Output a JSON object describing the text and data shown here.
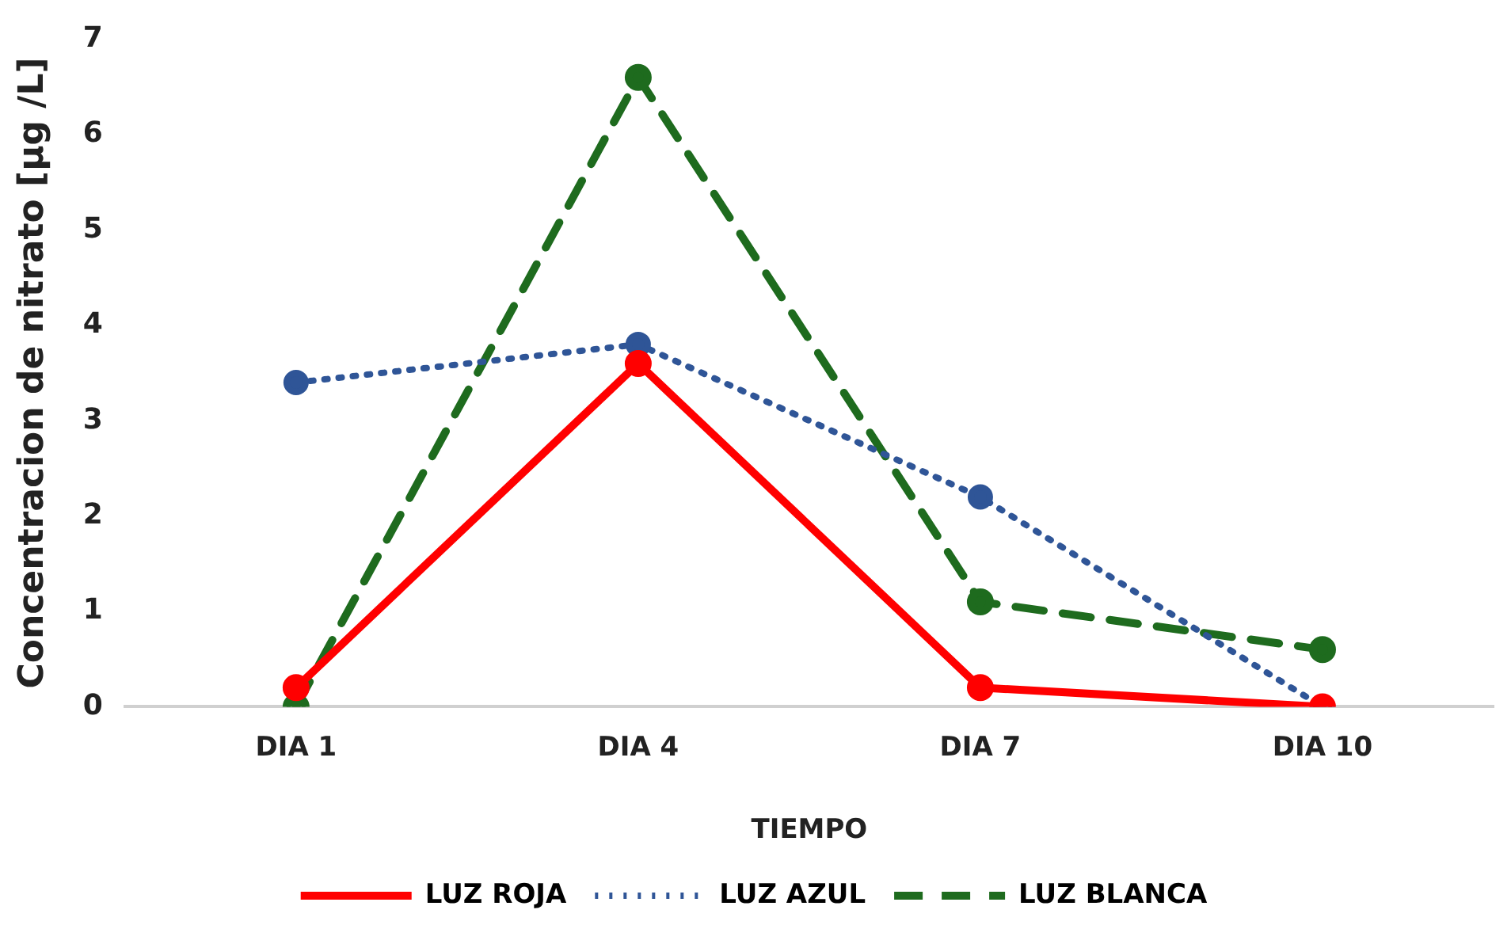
{
  "chart_data": {
    "type": "line",
    "xlabel": "TIEMPO",
    "ylabel": "Concentracion de nitrato [µg /L]",
    "categories": [
      "DIA 1",
      "DIA 4",
      "DIA 7",
      "DIA 10"
    ],
    "series": [
      {
        "name": "LUZ ROJA",
        "color": "#ff0000",
        "line_style": "solid",
        "values": [
          0.2,
          3.6,
          0.2,
          0
        ]
      },
      {
        "name": "LUZ AZUL",
        "color": "#2f5597",
        "line_style": "dotted",
        "values": [
          3.4,
          3.8,
          2.2,
          0
        ]
      },
      {
        "name": "LUZ BLANCA",
        "color": "#1e6b1e",
        "line_style": "dashed",
        "values": [
          0,
          6.6,
          1.1,
          0.6
        ]
      }
    ],
    "ylim": [
      0,
      7
    ],
    "yticks": [
      0,
      1,
      2,
      3,
      4,
      5,
      6,
      7
    ],
    "grid": false,
    "legend": "bottom",
    "marker": "circle"
  }
}
